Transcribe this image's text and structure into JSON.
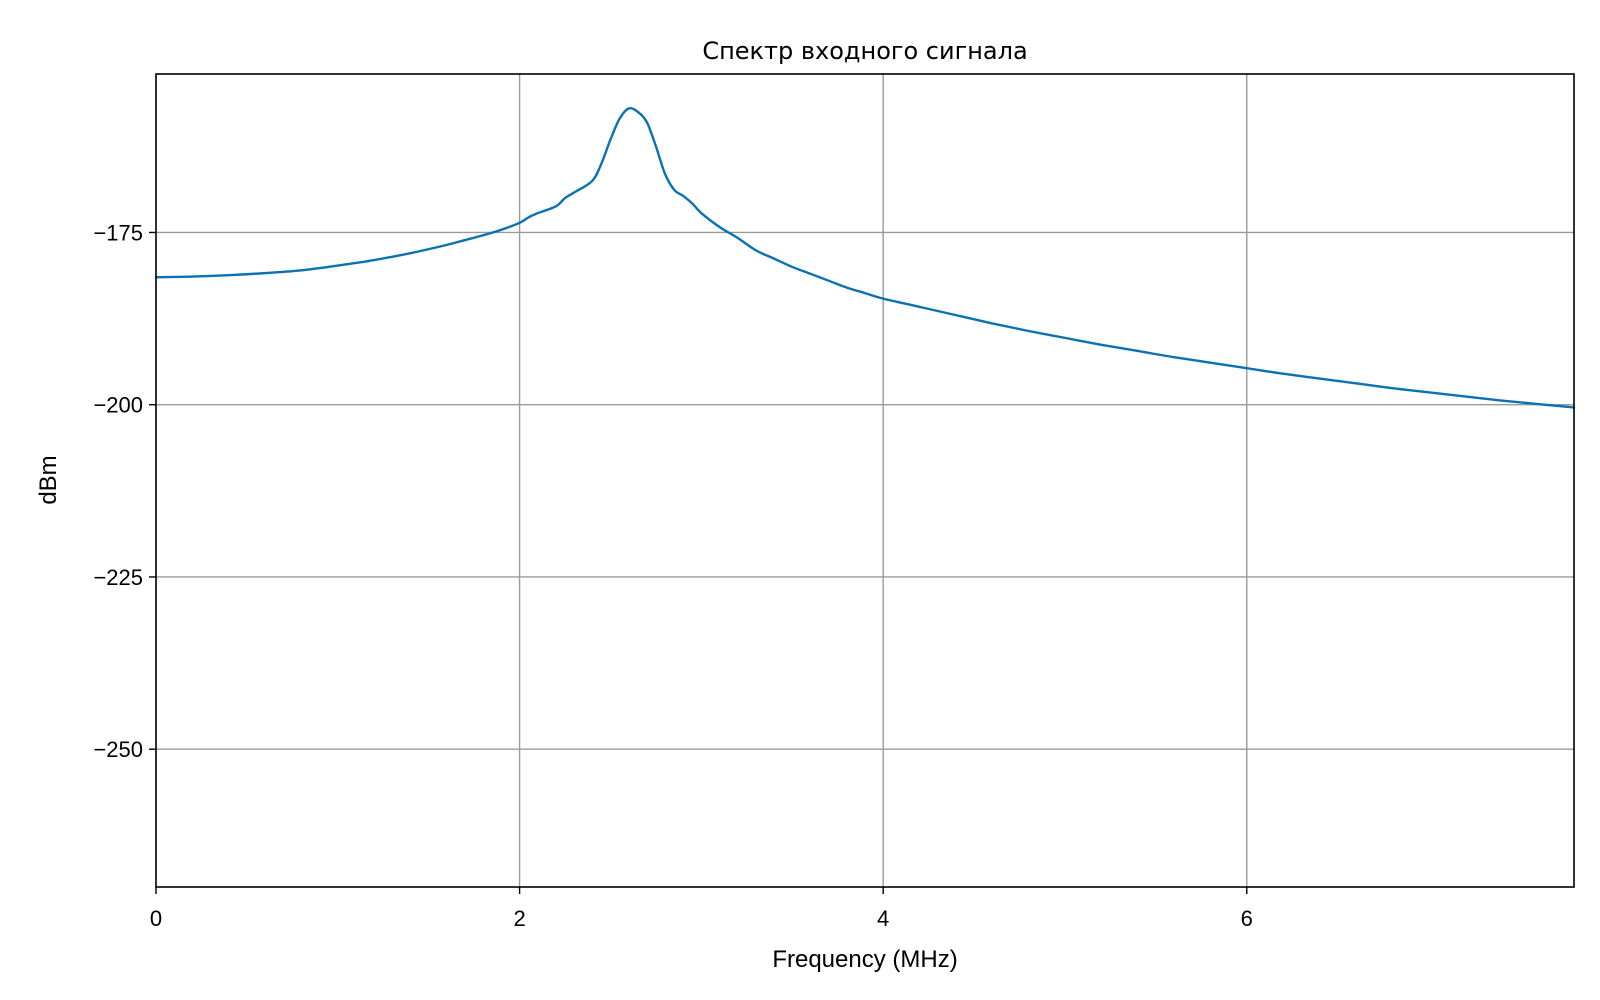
{
  "chart_data": {
    "type": "line",
    "title": "Спектр входного сигнала",
    "xlabel": "Frequency (MHz)",
    "ylabel": "dBm",
    "xlim": [
      0,
      7.8
    ],
    "ylim": [
      -270,
      -152
    ],
    "grid": true,
    "x_ticks": [
      0,
      2,
      4,
      6
    ],
    "x_tick_labels": [
      "0",
      "2",
      "4",
      "6"
    ],
    "y_ticks": [
      -175,
      -200,
      -225,
      -250
    ],
    "y_tick_labels": [
      "−175",
      "−200",
      "−225",
      "−250"
    ],
    "series": [
      {
        "color": "#0a72b0",
        "x": [
          0,
          0.2,
          0.4,
          0.6,
          0.8,
          1.0,
          1.2,
          1.4,
          1.6,
          1.7,
          1.8,
          1.9,
          2.0,
          2.05,
          2.1,
          2.2,
          2.25,
          2.3,
          2.4,
          2.45,
          2.5,
          2.55,
          2.6,
          2.65,
          2.7,
          2.75,
          2.8,
          2.85,
          2.9,
          2.95,
          3.0,
          3.1,
          3.2,
          3.3,
          3.4,
          3.5,
          3.6,
          3.7,
          3.8,
          3.9,
          4.0,
          4.2,
          4.4,
          4.6,
          4.8,
          5.0,
          5.2,
          5.4,
          5.6,
          5.8,
          6.0,
          6.2,
          6.4,
          6.6,
          6.8,
          7.0,
          7.2,
          7.4,
          7.6,
          7.8
        ],
        "y": [
          -181.5,
          -181.4,
          -181.2,
          -180.9,
          -180.5,
          -179.8,
          -179.0,
          -178.0,
          -176.8,
          -176.1,
          -175.4,
          -174.6,
          -173.6,
          -172.8,
          -172.2,
          -171.2,
          -170.0,
          -169.2,
          -167.5,
          -165.0,
          -161.5,
          -158.5,
          -157.0,
          -157.5,
          -159.0,
          -162.5,
          -166.5,
          -168.8,
          -169.7,
          -170.8,
          -172.2,
          -174.2,
          -175.8,
          -177.6,
          -178.8,
          -180.0,
          -181.0,
          -182.0,
          -183.0,
          -183.8,
          -184.6,
          -185.8,
          -187.0,
          -188.2,
          -189.3,
          -190.3,
          -191.3,
          -192.2,
          -193.1,
          -193.9,
          -194.7,
          -195.5,
          -196.2,
          -196.9,
          -197.6,
          -198.2,
          -198.8,
          -199.4,
          -199.9,
          -200.4
        ]
      }
    ]
  }
}
